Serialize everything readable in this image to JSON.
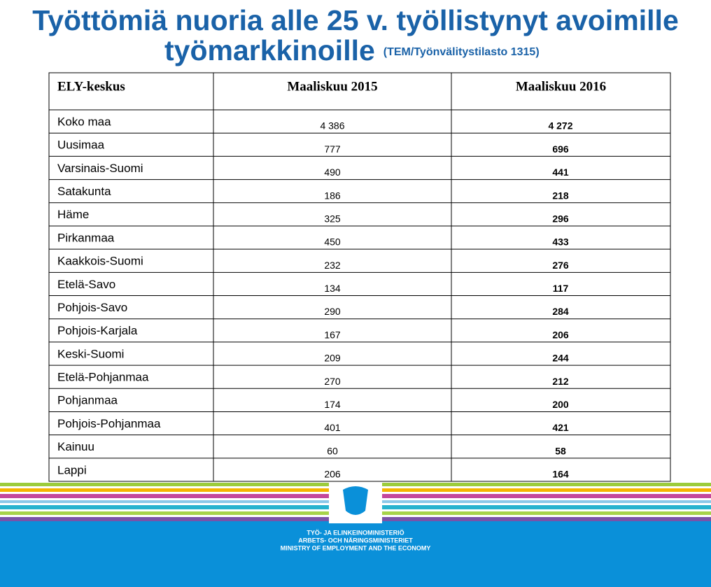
{
  "header": {
    "title_line1": "Työttömiä nuoria alle 25 v. työllistynyt avoimille",
    "title_line2": "työmarkkinoille",
    "source": "(TEM/Työnvälitystilasto 1315)"
  },
  "table": {
    "columns": [
      "ELY-keskus",
      "Maaliskuu 2015",
      "Maaliskuu 2016"
    ],
    "rows": [
      [
        "Koko maa",
        "4 386",
        "4 272"
      ],
      [
        "Uusimaa",
        "777",
        "696"
      ],
      [
        "Varsinais-Suomi",
        "490",
        "441"
      ],
      [
        "Satakunta",
        "186",
        "218"
      ],
      [
        "Häme",
        "325",
        "296"
      ],
      [
        "Pirkanmaa",
        "450",
        "433"
      ],
      [
        "Kaakkois-Suomi",
        "232",
        "276"
      ],
      [
        "Etelä-Savo",
        "134",
        "117"
      ],
      [
        "Pohjois-Savo",
        "290",
        "284"
      ],
      [
        "Pohjois-Karjala",
        "167",
        "206"
      ],
      [
        "Keski-Suomi",
        "209",
        "244"
      ],
      [
        "Etelä-Pohjanmaa",
        "270",
        "212"
      ],
      [
        "Pohjanmaa",
        "174",
        "200"
      ],
      [
        "Pohjois-Pohjanmaa",
        "401",
        "421"
      ],
      [
        "Kainuu",
        "60",
        "58"
      ],
      [
        "Lappi",
        "206",
        "164"
      ]
    ]
  },
  "footer": {
    "lines": [
      "TYÖ- JA ELINKEINOMINISTERIÖ",
      "ARBETS- OCH NÄRINGSMINISTERIET",
      "MINISTRY OF EMPLOYMENT AND THE ECONOMY"
    ]
  }
}
